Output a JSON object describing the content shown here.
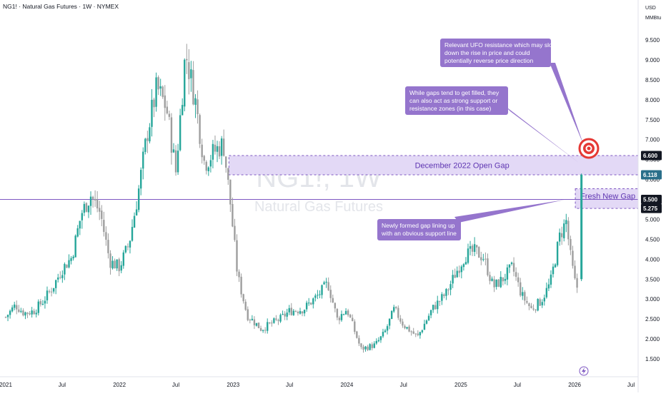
{
  "header": {
    "symbol_line": "NG1! · Natural Gas Futures · 1W · NYMEX"
  },
  "price_scale": {
    "currency": "USD",
    "unit": "MMBtu"
  },
  "watermark": {
    "symbol": "NG1!, 1W",
    "name": "Natural Gas Futures"
  },
  "zones": {
    "open_gap_label": "December 2022 Open Gap",
    "fresh_gap_label": "Fresh New Gap"
  },
  "annotations": {
    "ufo": "Relevant UFO resistance which may slow down the rise in price and could potentially reverse price direction",
    "gaps": "While gaps tend to get filled, they can also act as strong support or resistance zones (in this case)",
    "newly": "Newly formed gap lining up with an obvious support line"
  },
  "price_tags": [
    {
      "value": 6.6,
      "label": "6.600",
      "style": "dark"
    },
    {
      "value": 6.118,
      "label": "6.118",
      "style": "teal"
    },
    {
      "value": 5.5,
      "label": "5.500",
      "style": "dark"
    },
    {
      "value": 5.275,
      "label": "5.275",
      "style": "dark"
    }
  ],
  "colors": {
    "up": "#26a69a",
    "down": "#9e9e9e",
    "zone_fill": "#e3d9f6",
    "zone_border": "#7e57c2",
    "callout": "#9575cd",
    "tag_dark": "#131722",
    "tag_teal": "#2a6f8a",
    "target": "#e53935"
  },
  "chart_data": {
    "type": "candlestick",
    "symbol": "NG1!",
    "timeframe": "1W",
    "exchange": "NYMEX",
    "y_axis": {
      "ticks": [
        1.5,
        2.0,
        2.5,
        3.0,
        3.5,
        4.0,
        4.5,
        5.0,
        5.5,
        6.0,
        6.5,
        7.0,
        7.5,
        8.0,
        8.5,
        9.0,
        9.5
      ],
      "tick_labels": [
        "1.500",
        "2.000",
        "2.500",
        "3.000",
        "3.500",
        "4.000",
        "4.500",
        "5.000",
        "5.500",
        "6.000",
        "6.500",
        "7.000",
        "7.500",
        "8.000",
        "8.500",
        "9.000",
        "9.500"
      ]
    },
    "x_axis": {
      "ticks": [
        "2021-01-01",
        "2021-07-01",
        "2022-01-01",
        "2022-07-01",
        "2023-01-01",
        "2023-07-01",
        "2024-01-01",
        "2024-07-01",
        "2025-01-01",
        "2025-07-01",
        "2026-01-01",
        "2026-07-01"
      ],
      "tick_labels": [
        "2021",
        "Jul",
        "2022",
        "Jul",
        "2023",
        "Jul",
        "2024",
        "Jul",
        "2025",
        "Jul",
        "2026",
        "Jul"
      ]
    },
    "zones": [
      {
        "label": "December 2022 Open Gap",
        "start": "2022-12-23",
        "low": 6.118,
        "high": 6.6
      },
      {
        "label": "Fresh New Gap",
        "start": "2026-01-01",
        "low": 5.275,
        "high": 5.5
      }
    ],
    "support_line": 5.5,
    "waypoints": [
      [
        "2021-01-01",
        2.55
      ],
      [
        "2021-02-01",
        2.85
      ],
      [
        "2021-03-01",
        2.65
      ],
      [
        "2021-04-01",
        2.7
      ],
      [
        "2021-05-01",
        2.95
      ],
      [
        "2021-06-01",
        3.3
      ],
      [
        "2021-07-01",
        3.75
      ],
      [
        "2021-08-01",
        4.05
      ],
      [
        "2021-09-01",
        5.15
      ],
      [
        "2021-10-01",
        5.6
      ],
      [
        "2021-11-01",
        5.15
      ],
      [
        "2021-12-01",
        3.95
      ],
      [
        "2022-01-01",
        3.8
      ],
      [
        "2022-02-01",
        4.4
      ],
      [
        "2022-03-01",
        5.6
      ],
      [
        "2022-04-01",
        7.2
      ],
      [
        "2022-05-01",
        8.3
      ],
      [
        "2022-06-01",
        7.8
      ],
      [
        "2022-07-01",
        6.2
      ],
      [
        "2022-08-01",
        9.2
      ],
      [
        "2022-09-01",
        8.0
      ],
      [
        "2022-10-01",
        6.4
      ],
      [
        "2022-11-01",
        6.7
      ],
      [
        "2022-12-01",
        6.9
      ],
      [
        "2022-12-23",
        5.4
      ],
      [
        "2023-01-15",
        3.6
      ],
      [
        "2023-02-15",
        2.6
      ],
      [
        "2023-04-01",
        2.25
      ],
      [
        "2023-06-01",
        2.5
      ],
      [
        "2023-07-01",
        2.7
      ],
      [
        "2023-08-15",
        2.75
      ],
      [
        "2023-10-01",
        3.1
      ],
      [
        "2023-11-01",
        3.4
      ],
      [
        "2023-12-01",
        2.5
      ],
      [
        "2024-01-01",
        2.75
      ],
      [
        "2024-02-15",
        1.75
      ],
      [
        "2024-04-01",
        1.85
      ],
      [
        "2024-05-01",
        2.15
      ],
      [
        "2024-06-01",
        2.75
      ],
      [
        "2024-07-01",
        2.35
      ],
      [
        "2024-08-15",
        2.05
      ],
      [
        "2024-10-01",
        2.75
      ],
      [
        "2024-11-15",
        3.15
      ],
      [
        "2024-12-15",
        3.65
      ],
      [
        "2025-01-15",
        4.1
      ],
      [
        "2025-02-15",
        4.2
      ],
      [
        "2025-03-15",
        4.05
      ],
      [
        "2025-04-15",
        3.3
      ],
      [
        "2025-05-15",
        3.5
      ],
      [
        "2025-06-15",
        3.8
      ],
      [
        "2025-07-15",
        3.1
      ],
      [
        "2025-08-15",
        2.75
      ],
      [
        "2025-09-15",
        2.95
      ],
      [
        "2025-10-15",
        3.4
      ],
      [
        "2025-11-15",
        4.6
      ],
      [
        "2025-12-05",
        4.95
      ],
      [
        "2025-12-20",
        4.0
      ],
      [
        "2026-01-05",
        3.3
      ],
      [
        "2026-01-15",
        3.3
      ]
    ],
    "final_candle": {
      "date": "2026-01-23",
      "open": 3.5,
      "high": 6.15,
      "low": 3.45,
      "close": 6.118
    }
  }
}
